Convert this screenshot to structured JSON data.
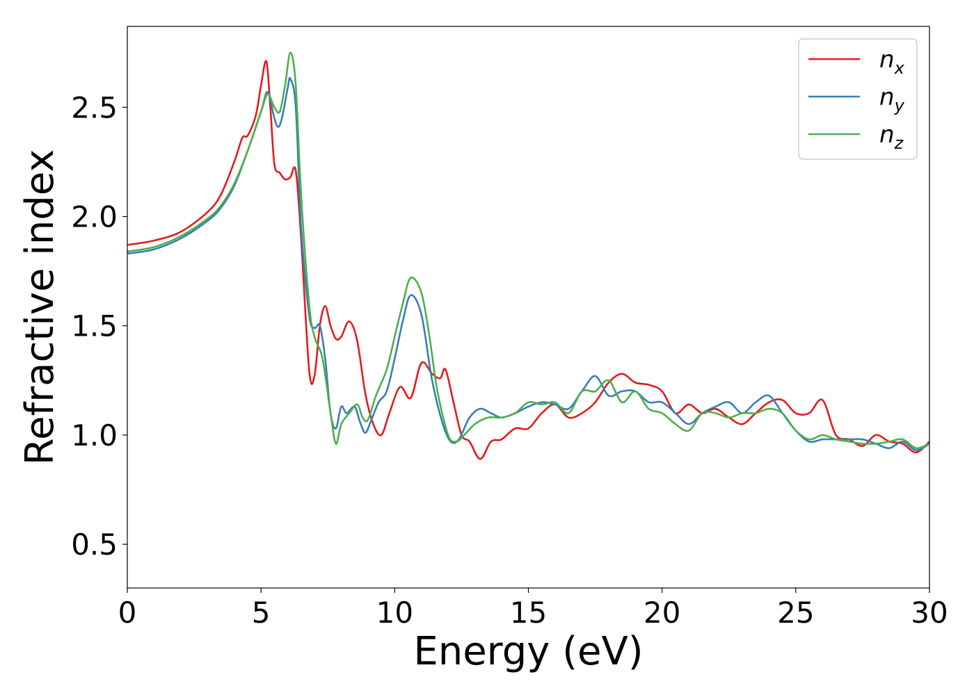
{
  "chart_data": {
    "type": "line",
    "title": "",
    "xlabel": "Energy (eV)",
    "ylabel": "Refractive index",
    "xlim": [
      0,
      30
    ],
    "ylim": [
      0.3,
      2.87
    ],
    "xticks": [
      0,
      5,
      10,
      15,
      20,
      25,
      30
    ],
    "yticks": [
      0.5,
      1.0,
      1.5,
      2.0,
      2.5
    ],
    "xtick_labels": [
      "0",
      "5",
      "10",
      "15",
      "20",
      "25",
      "30"
    ],
    "ytick_labels": [
      "0.5",
      "1.0",
      "1.5",
      "2.0",
      "2.5"
    ],
    "grid": false,
    "legend_position": "top-right",
    "series": [
      {
        "name": "n",
        "subscript": "x",
        "color": "#e41a1c",
        "x": [
          0,
          1,
          2,
          3,
          3.5,
          4,
          4.3,
          4.5,
          4.8,
          5.0,
          5.2,
          5.35,
          5.5,
          5.7,
          5.9,
          6.1,
          6.3,
          6.5,
          6.8,
          7.0,
          7.2,
          7.4,
          7.6,
          7.8,
          8.0,
          8.3,
          8.6,
          8.9,
          9.2,
          9.5,
          9.8,
          10.2,
          10.6,
          11.0,
          11.4,
          11.7,
          11.9,
          12.2,
          12.5,
          12.8,
          13.2,
          13.6,
          14.0,
          14.5,
          15.0,
          15.5,
          16.0,
          16.5,
          17.0,
          17.5,
          18.0,
          18.5,
          19.0,
          19.5,
          20.0,
          20.5,
          21.0,
          21.5,
          22.0,
          22.5,
          23.0,
          23.5,
          24.0,
          24.5,
          25.0,
          25.5,
          26.0,
          26.5,
          27.0,
          27.5,
          28.0,
          28.5,
          29.0,
          29.5,
          30.0
        ],
        "y": [
          1.87,
          1.89,
          1.93,
          2.02,
          2.1,
          2.25,
          2.36,
          2.37,
          2.46,
          2.6,
          2.71,
          2.5,
          2.24,
          2.2,
          2.17,
          2.18,
          2.21,
          1.9,
          1.3,
          1.27,
          1.5,
          1.59,
          1.5,
          1.44,
          1.45,
          1.52,
          1.43,
          1.19,
          1.05,
          1.0,
          1.1,
          1.22,
          1.17,
          1.33,
          1.28,
          1.26,
          1.3,
          1.15,
          1.0,
          0.97,
          0.89,
          0.97,
          0.98,
          1.03,
          1.03,
          1.1,
          1.14,
          1.08,
          1.1,
          1.15,
          1.24,
          1.28,
          1.24,
          1.23,
          1.2,
          1.1,
          1.14,
          1.1,
          1.12,
          1.08,
          1.05,
          1.1,
          1.15,
          1.16,
          1.1,
          1.1,
          1.16,
          1.0,
          0.98,
          0.95,
          1.0,
          0.97,
          0.96,
          0.92,
          0.97
        ]
      },
      {
        "name": "n",
        "subscript": "y",
        "color": "#377eb8",
        "x": [
          0,
          1,
          2,
          3,
          3.5,
          4,
          4.5,
          5.0,
          5.25,
          5.5,
          5.65,
          5.8,
          6.0,
          6.1,
          6.3,
          6.5,
          6.8,
          7.0,
          7.2,
          7.4,
          7.6,
          7.8,
          8.0,
          8.2,
          8.5,
          8.7,
          8.9,
          9.1,
          9.4,
          9.7,
          10.0,
          10.3,
          10.6,
          11.0,
          11.4,
          11.8,
          12.1,
          12.4,
          12.8,
          13.2,
          13.6,
          14.0,
          14.5,
          15.0,
          15.5,
          16.0,
          16.5,
          17.0,
          17.5,
          18.0,
          18.5,
          19.0,
          19.5,
          20.0,
          20.5,
          21.0,
          21.5,
          22.0,
          22.5,
          23.0,
          23.5,
          24.0,
          24.5,
          25.0,
          25.5,
          26.0,
          26.5,
          27.0,
          27.5,
          28.0,
          28.5,
          29.0,
          29.5,
          30.0
        ],
        "y": [
          1.83,
          1.85,
          1.9,
          1.98,
          2.04,
          2.14,
          2.3,
          2.48,
          2.57,
          2.45,
          2.41,
          2.46,
          2.59,
          2.63,
          2.5,
          1.95,
          1.55,
          1.49,
          1.5,
          1.35,
          1.1,
          1.03,
          1.13,
          1.1,
          1.13,
          1.06,
          1.01,
          1.06,
          1.15,
          1.2,
          1.35,
          1.52,
          1.64,
          1.55,
          1.25,
          1.05,
          0.97,
          0.98,
          1.08,
          1.12,
          1.1,
          1.08,
          1.1,
          1.13,
          1.15,
          1.14,
          1.12,
          1.2,
          1.27,
          1.18,
          1.2,
          1.2,
          1.15,
          1.15,
          1.1,
          1.05,
          1.1,
          1.13,
          1.15,
          1.1,
          1.15,
          1.18,
          1.1,
          1.02,
          0.97,
          0.98,
          0.98,
          0.98,
          0.98,
          0.96,
          0.94,
          0.97,
          0.93,
          0.96
        ]
      },
      {
        "name": "n",
        "subscript": "z",
        "color": "#4daf4a",
        "x": [
          0,
          1,
          2,
          3,
          3.5,
          4,
          4.5,
          5.0,
          5.25,
          5.5,
          5.7,
          5.9,
          6.1,
          6.3,
          6.5,
          6.8,
          7.0,
          7.3,
          7.6,
          7.8,
          8.0,
          8.3,
          8.6,
          8.8,
          9.0,
          9.3,
          9.7,
          10.0,
          10.3,
          10.6,
          11.0,
          11.3,
          11.6,
          12.0,
          12.3,
          12.6,
          13.0,
          13.5,
          14.0,
          14.5,
          15.0,
          15.5,
          16.0,
          16.5,
          17.0,
          17.5,
          18.0,
          18.5,
          19.0,
          19.5,
          20.0,
          20.5,
          21.0,
          21.5,
          22.0,
          22.5,
          23.0,
          23.5,
          24.0,
          24.5,
          25.0,
          25.5,
          26.0,
          26.5,
          27.0,
          27.5,
          28.0,
          28.5,
          29.0,
          29.5,
          30.0
        ],
        "y": [
          1.84,
          1.86,
          1.91,
          1.99,
          2.05,
          2.15,
          2.3,
          2.48,
          2.56,
          2.5,
          2.48,
          2.6,
          2.75,
          2.6,
          2.1,
          1.6,
          1.45,
          1.35,
          1.1,
          0.96,
          1.05,
          1.1,
          1.14,
          1.08,
          1.07,
          1.18,
          1.3,
          1.45,
          1.6,
          1.72,
          1.65,
          1.45,
          1.2,
          1.0,
          0.97,
          1.0,
          1.05,
          1.08,
          1.08,
          1.1,
          1.15,
          1.14,
          1.15,
          1.1,
          1.2,
          1.2,
          1.25,
          1.15,
          1.2,
          1.12,
          1.1,
          1.05,
          1.02,
          1.1,
          1.1,
          1.08,
          1.1,
          1.1,
          1.12,
          1.1,
          1.02,
          0.98,
          1.0,
          0.98,
          0.97,
          0.96,
          0.96,
          0.97,
          0.98,
          0.94,
          0.96
        ]
      }
    ]
  }
}
